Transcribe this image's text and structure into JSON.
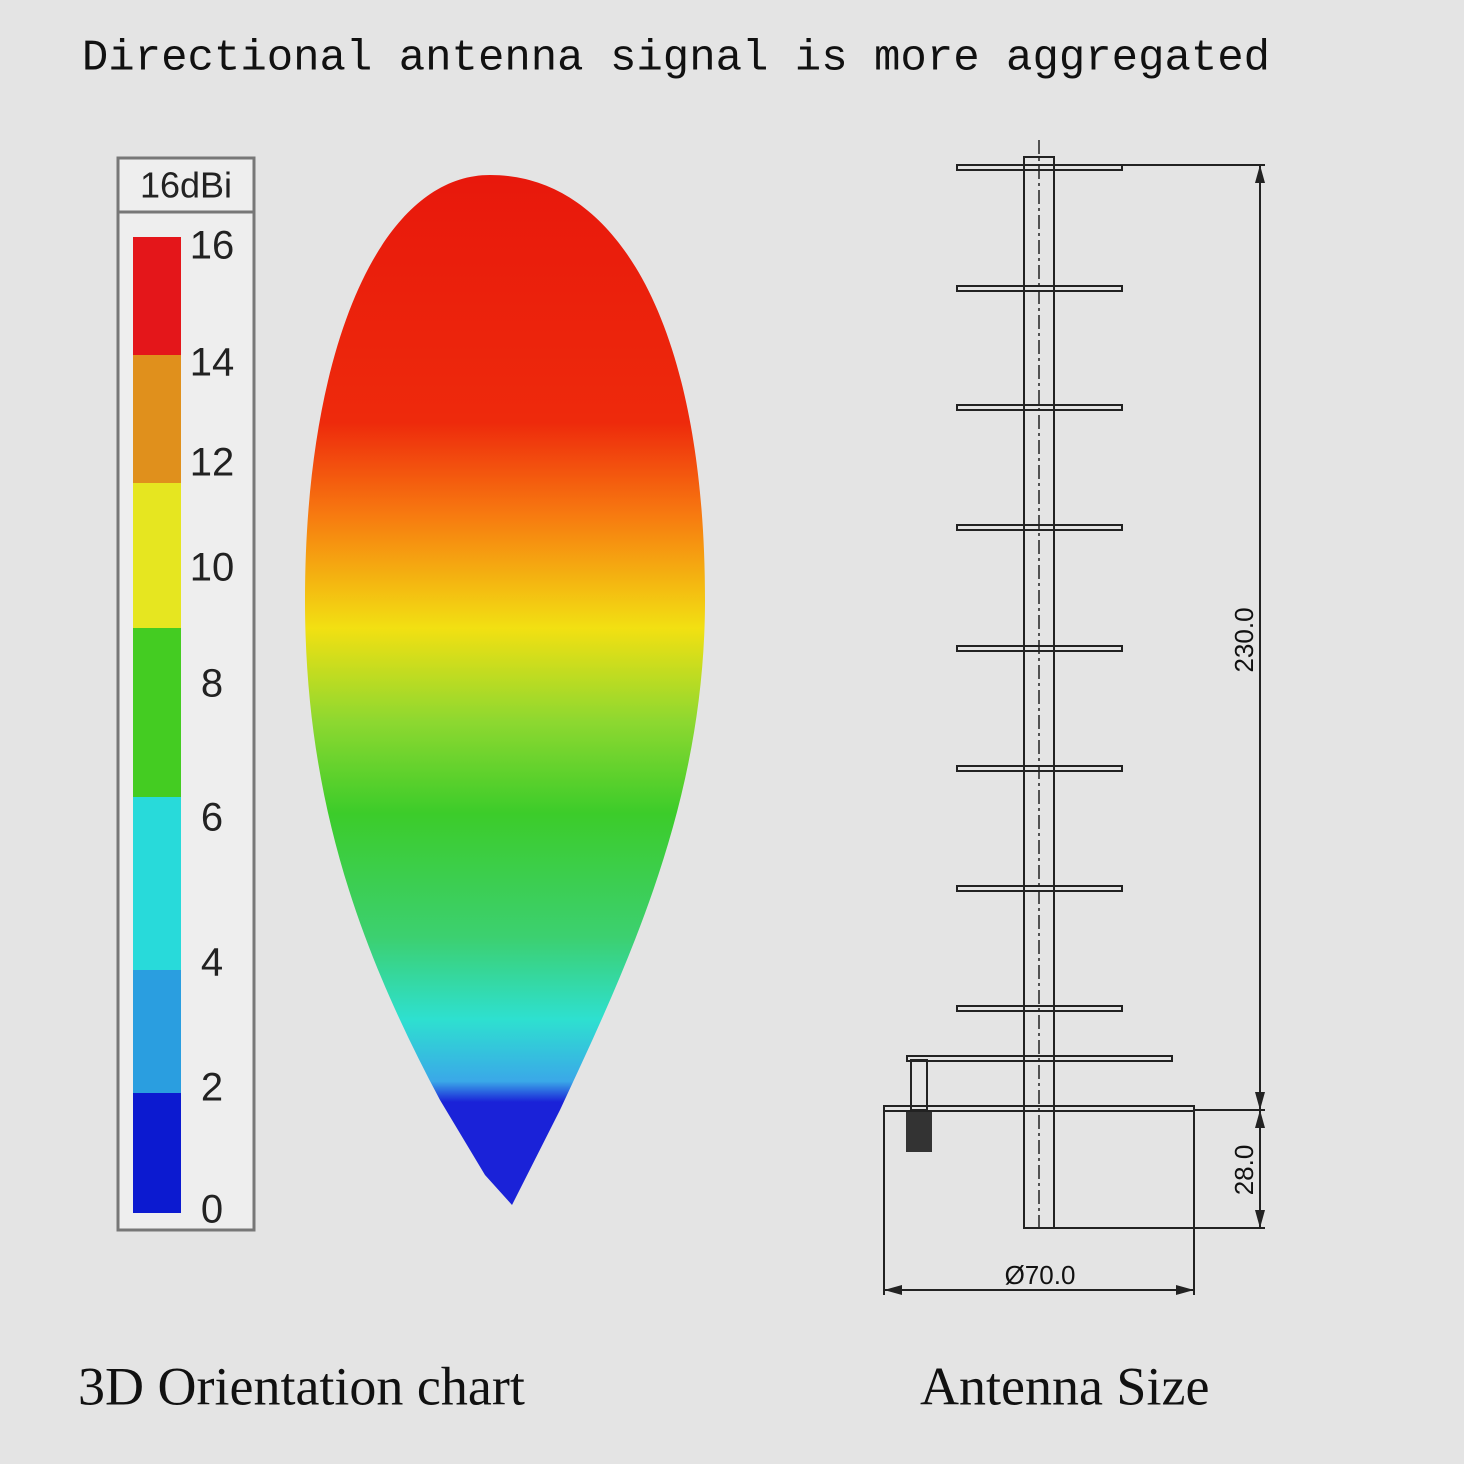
{
  "header": {
    "title": "Directional antenna signal is more aggregated"
  },
  "legend": {
    "title": "16dBi",
    "ticks": [
      "16",
      "14",
      "12",
      "10",
      "8",
      "6",
      "4",
      "2",
      "0"
    ]
  },
  "dimensions": {
    "height": "230.0",
    "base": "28.0",
    "diameter": "Ø70.0"
  },
  "captions": {
    "left": "3D Orientation chart",
    "right": "Antenna Size"
  }
}
